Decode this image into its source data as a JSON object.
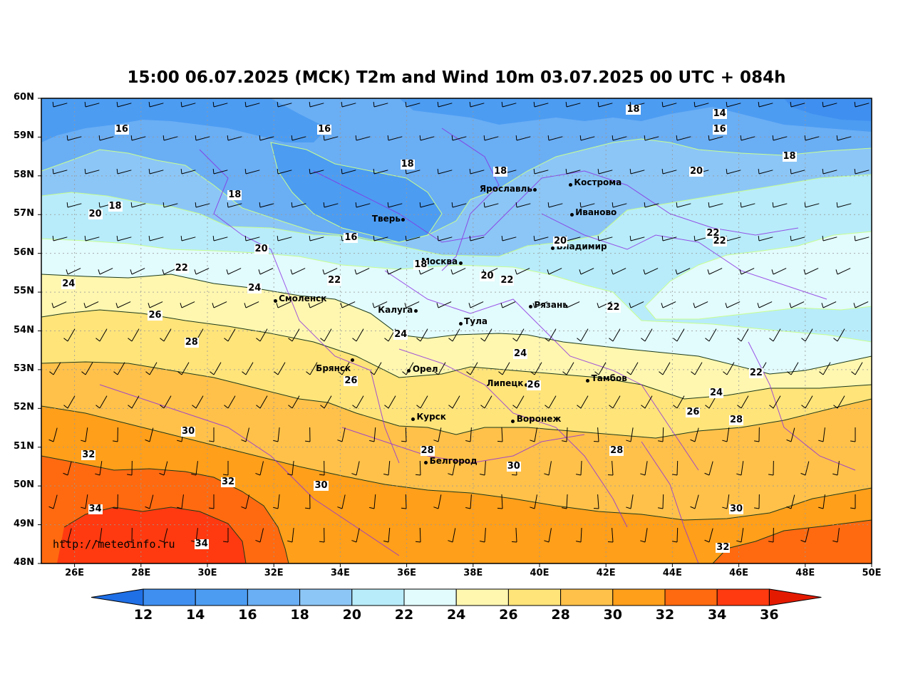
{
  "title": "15:00 06.07.2025 (MCK) T2m and Wind 10m 03.07.2025 00 UTC + 084h",
  "watermark": "http://meteoinfo.ru",
  "axes": {
    "lat_labels": [
      "60N",
      "59N",
      "58N",
      "57N",
      "56N",
      "55N",
      "54N",
      "53N",
      "52N",
      "51N",
      "50N",
      "49N",
      "48N"
    ],
    "lon_labels": [
      "26E",
      "28E",
      "30E",
      "32E",
      "34E",
      "36E",
      "38E",
      "40E",
      "42E",
      "44E",
      "46E",
      "48E",
      "50E"
    ],
    "lon_range": [
      25,
      50
    ],
    "lat_range": [
      48,
      60
    ]
  },
  "colorbar": {
    "labels": [
      "12",
      "14",
      "16",
      "18",
      "20",
      "22",
      "24",
      "26",
      "28",
      "30",
      "32",
      "34",
      "36"
    ],
    "colors": [
      "#2f7fef",
      "#3f8ff0",
      "#4c9cf2",
      "#6aaef4",
      "#8cc6f6",
      "#b8ecfa",
      "#e2fbfd",
      "#fff7b0",
      "#ffe47a",
      "#ffc14a",
      "#ff9f1a",
      "#ff6a10",
      "#ff3a10"
    ],
    "under_color": "#1f6fe6",
    "over_color": "#e41a00"
  },
  "cities": [
    {
      "name": "Ярославль",
      "lon": 39.87,
      "lat": 57.63,
      "side": "left"
    },
    {
      "name": "Кострома",
      "lon": 40.93,
      "lat": 57.77,
      "side": "right"
    },
    {
      "name": "Иваново",
      "lon": 40.97,
      "lat": 57.0,
      "side": "right"
    },
    {
      "name": "Тверь",
      "lon": 35.9,
      "lat": 56.86,
      "side": "left"
    },
    {
      "name": "Владимир",
      "lon": 40.4,
      "lat": 56.13,
      "side": "right"
    },
    {
      "name": "Москва",
      "lon": 37.62,
      "lat": 55.75,
      "side": "left"
    },
    {
      "name": "Смоленск",
      "lon": 32.04,
      "lat": 54.78,
      "side": "right"
    },
    {
      "name": "Калуга",
      "lon": 36.27,
      "lat": 54.51,
      "side": "left"
    },
    {
      "name": "Рязань",
      "lon": 39.73,
      "lat": 54.62,
      "side": "right"
    },
    {
      "name": "Тула",
      "lon": 37.62,
      "lat": 54.19,
      "side": "right"
    },
    {
      "name": "Брянск",
      "lon": 34.36,
      "lat": 53.24,
      "side": "left-below"
    },
    {
      "name": "Орел",
      "lon": 36.07,
      "lat": 52.97,
      "side": "right"
    },
    {
      "name": "Липецк",
      "lon": 39.6,
      "lat": 52.61,
      "side": "left"
    },
    {
      "name": "Тамбов",
      "lon": 41.45,
      "lat": 52.72,
      "side": "right"
    },
    {
      "name": "Курск",
      "lon": 36.19,
      "lat": 51.73,
      "side": "right"
    },
    {
      "name": "Воронеж",
      "lon": 39.2,
      "lat": 51.67,
      "side": "right"
    },
    {
      "name": "Белгород",
      "lon": 36.58,
      "lat": 50.6,
      "side": "right"
    }
  ],
  "contour_labels": [
    {
      "text": "16",
      "lon": 27.4,
      "lat": 59.2
    },
    {
      "text": "16",
      "lon": 33.5,
      "lat": 59.2
    },
    {
      "text": "18",
      "lon": 42.8,
      "lat": 59.7
    },
    {
      "text": "14",
      "lon": 45.4,
      "lat": 59.6
    },
    {
      "text": "16",
      "lon": 45.4,
      "lat": 59.2
    },
    {
      "text": "18",
      "lon": 36.0,
      "lat": 58.3
    },
    {
      "text": "18",
      "lon": 38.8,
      "lat": 58.1
    },
    {
      "text": "18",
      "lon": 47.5,
      "lat": 58.5
    },
    {
      "text": "20",
      "lon": 44.7,
      "lat": 58.1
    },
    {
      "text": "18",
      "lon": 30.8,
      "lat": 57.5
    },
    {
      "text": "18",
      "lon": 27.2,
      "lat": 57.2
    },
    {
      "text": "20",
      "lon": 26.6,
      "lat": 57.0
    },
    {
      "text": "16",
      "lon": 34.3,
      "lat": 56.4
    },
    {
      "text": "20",
      "lon": 40.6,
      "lat": 56.3
    },
    {
      "text": "22",
      "lon": 45.2,
      "lat": 56.5
    },
    {
      "text": "22",
      "lon": 45.4,
      "lat": 56.3
    },
    {
      "text": "20",
      "lon": 31.6,
      "lat": 56.1
    },
    {
      "text": "18",
      "lon": 36.4,
      "lat": 55.7
    },
    {
      "text": "22",
      "lon": 29.2,
      "lat": 55.6
    },
    {
      "text": "20",
      "lon": 38.4,
      "lat": 55.4
    },
    {
      "text": "22",
      "lon": 39.0,
      "lat": 55.3
    },
    {
      "text": "22",
      "lon": 33.8,
      "lat": 55.3
    },
    {
      "text": "24",
      "lon": 25.8,
      "lat": 55.2
    },
    {
      "text": "24",
      "lon": 31.4,
      "lat": 55.1
    },
    {
      "text": "22",
      "lon": 42.2,
      "lat": 54.6
    },
    {
      "text": "26",
      "lon": 28.4,
      "lat": 54.4
    },
    {
      "text": "24",
      "lon": 35.8,
      "lat": 53.9
    },
    {
      "text": "28",
      "lon": 29.5,
      "lat": 53.7
    },
    {
      "text": "24",
      "lon": 39.4,
      "lat": 53.4
    },
    {
      "text": "22",
      "lon": 46.5,
      "lat": 52.9
    },
    {
      "text": "26",
      "lon": 34.3,
      "lat": 52.7
    },
    {
      "text": "26",
      "lon": 39.8,
      "lat": 52.6
    },
    {
      "text": "24",
      "lon": 45.3,
      "lat": 52.4
    },
    {
      "text": "26",
      "lon": 44.6,
      "lat": 51.9
    },
    {
      "text": "28",
      "lon": 45.9,
      "lat": 51.7
    },
    {
      "text": "30",
      "lon": 29.4,
      "lat": 51.4
    },
    {
      "text": "28",
      "lon": 36.6,
      "lat": 50.9
    },
    {
      "text": "28",
      "lon": 42.3,
      "lat": 50.9
    },
    {
      "text": "32",
      "lon": 26.4,
      "lat": 50.8
    },
    {
      "text": "30",
      "lon": 39.2,
      "lat": 50.5
    },
    {
      "text": "32",
      "lon": 30.6,
      "lat": 50.1
    },
    {
      "text": "30",
      "lon": 33.4,
      "lat": 50.0
    },
    {
      "text": "34",
      "lon": 26.6,
      "lat": 49.4
    },
    {
      "text": "30",
      "lon": 45.9,
      "lat": 49.4
    },
    {
      "text": "34",
      "lon": 29.8,
      "lat": 48.5
    },
    {
      "text": "32",
      "lon": 45.5,
      "lat": 48.4
    }
  ]
}
